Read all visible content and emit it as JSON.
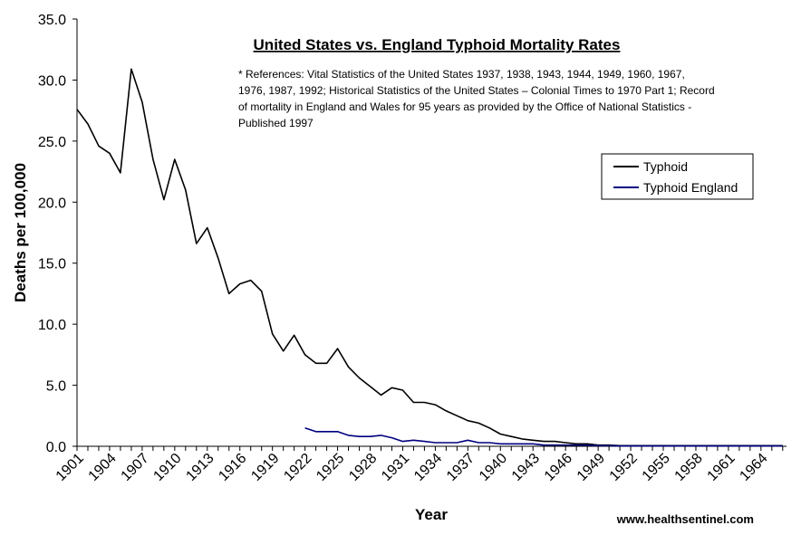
{
  "chart_data": {
    "type": "line",
    "title": "United States vs. England Typhoid Mortality Rates",
    "note_lines": [
      "* References: Vital Statistics of the United States 1937, 1938, 1943, 1944, 1949, 1960, 1967,",
      "1976, 1987, 1992; Historical Statistics of the United States – Colonial Times to 1970 Part 1; Record",
      "of mortality in England and Wales for 95 years as provided by the Office of National Statistics -",
      "Published 1997"
    ],
    "xlabel": "Year",
    "ylabel": "Deaths per 100,000",
    "ylim": [
      0,
      35
    ],
    "xlim": [
      1901,
      1966
    ],
    "y_ticks": [
      "0.0",
      "5.0",
      "10.0",
      "15.0",
      "20.0",
      "25.0",
      "30.0",
      "35.0"
    ],
    "x_ticks": [
      "1901",
      "1904",
      "1907",
      "1910",
      "1913",
      "1916",
      "1919",
      "1922",
      "1925",
      "1928",
      "1931",
      "1934",
      "1937",
      "1940",
      "1943",
      "1946",
      "1949",
      "1952",
      "1955",
      "1958",
      "1961",
      "1964"
    ],
    "grid": false,
    "legend_position": "right",
    "series": [
      {
        "name": "Typhoid",
        "color": "#000000",
        "x": [
          1901,
          1902,
          1903,
          1904,
          1905,
          1906,
          1907,
          1908,
          1909,
          1910,
          1911,
          1912,
          1913,
          1914,
          1915,
          1916,
          1917,
          1918,
          1919,
          1920,
          1921,
          1922,
          1923,
          1924,
          1925,
          1926,
          1927,
          1928,
          1929,
          1930,
          1931,
          1932,
          1933,
          1934,
          1935,
          1936,
          1937,
          1938,
          1939,
          1940,
          1941,
          1942,
          1943,
          1944,
          1945,
          1946,
          1947,
          1948,
          1949,
          1950,
          1951,
          1952,
          1953,
          1954,
          1955,
          1956,
          1957,
          1958,
          1959,
          1960,
          1961,
          1962,
          1963,
          1964,
          1965,
          1966
        ],
        "values": [
          27.6,
          26.4,
          24.6,
          24.0,
          22.4,
          30.9,
          28.2,
          23.5,
          20.2,
          23.5,
          21.0,
          16.6,
          17.9,
          15.4,
          12.5,
          13.3,
          13.6,
          12.7,
          9.2,
          7.8,
          9.1,
          7.5,
          6.8,
          6.8,
          8.0,
          6.5,
          5.6,
          4.9,
          4.2,
          4.8,
          4.6,
          3.6,
          3.6,
          3.4,
          2.9,
          2.5,
          2.1,
          1.9,
          1.5,
          1.0,
          0.8,
          0.6,
          0.5,
          0.4,
          0.4,
          0.3,
          0.2,
          0.2,
          0.1,
          0.1,
          0.05,
          0.05,
          0.05,
          0.05,
          0.05,
          0.05,
          0.05,
          0.05,
          0.05,
          0.05,
          0.05,
          0.05,
          0.05,
          0.05,
          0.05,
          0.05
        ]
      },
      {
        "name": "Typhoid England",
        "color": "#000080",
        "x": [
          1922,
          1923,
          1924,
          1925,
          1926,
          1927,
          1928,
          1929,
          1930,
          1931,
          1932,
          1933,
          1934,
          1935,
          1936,
          1937,
          1938,
          1939,
          1940,
          1941,
          1942,
          1943,
          1944,
          1945,
          1946,
          1947,
          1948,
          1949,
          1950,
          1951,
          1952,
          1953,
          1954,
          1955,
          1956,
          1957,
          1958,
          1959,
          1960,
          1961,
          1962,
          1963,
          1964,
          1965,
          1966
        ],
        "values": [
          1.5,
          1.2,
          1.2,
          1.2,
          0.9,
          0.8,
          0.8,
          0.9,
          0.7,
          0.4,
          0.5,
          0.4,
          0.3,
          0.3,
          0.3,
          0.5,
          0.3,
          0.3,
          0.2,
          0.2,
          0.2,
          0.2,
          0.1,
          0.1,
          0.1,
          0.1,
          0.1,
          0.05,
          0.05,
          0.03,
          0.03,
          0.03,
          0.03,
          0.03,
          0.03,
          0.03,
          0.03,
          0.03,
          0.03,
          0.03,
          0.03,
          0.03,
          0.03,
          0.03,
          0.03
        ]
      }
    ]
  },
  "credit": "www.healthsentinel.com"
}
